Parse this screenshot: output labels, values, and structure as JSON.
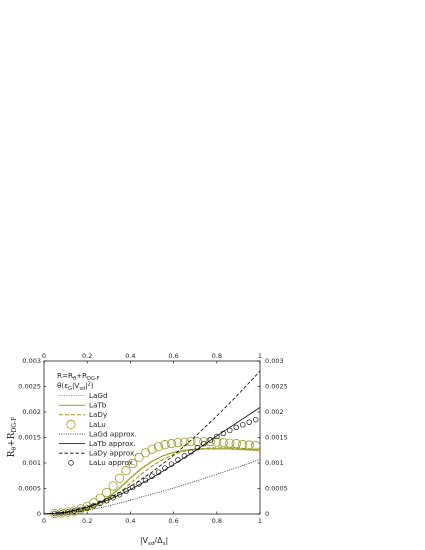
{
  "chart_data": {
    "type": "line",
    "xlabel": "|V",
    "xlabel_sub": "sd",
    "xlabel_mid": "/Δ",
    "xlabel_sub2": "s",
    "xlabel_end": "|",
    "ylabel": "R",
    "ylabel_sub": "θ",
    "ylabel_mid": "+R",
    "ylabel_sub2": "DG-F",
    "xlim": [
      0,
      1
    ],
    "ylim": [
      0,
      0.003
    ],
    "x_ticks": [
      "0",
      "0.2",
      "0.4",
      "0.6",
      "0.8",
      "1"
    ],
    "y_ticks_left": [
      "0",
      "0.0005",
      "0.001",
      "0.0015",
      "0.002",
      "0.0025",
      "0.003"
    ],
    "y_ticks_right": [
      "0",
      "0.0005",
      "0.001",
      "0.0015",
      "0.002",
      "0.0025",
      "0.003"
    ],
    "legend_header": {
      "line1_a": "R=R",
      "line1_sub": "θ",
      "line1_b": "+R",
      "line1_sub2": "DG-F",
      "line2_a": "θ(ε",
      "line2_sub": "G",
      "line2_b": "|V",
      "line2_sub2": "sd",
      "line2_c": "|",
      "line2_sup": "2",
      "line2_d": ")"
    },
    "legend_position": "top-left",
    "colors": {
      "lanthanide": "#9a9a1e",
      "approx": "#000000"
    },
    "series": [
      {
        "name": "LaGd",
        "style": "olive-dotted",
        "x": [
          0,
          0.05,
          0.1,
          0.15,
          0.2,
          0.25,
          0.3,
          0.35,
          0.4,
          0.45,
          0.5,
          0.55,
          0.6,
          0.65,
          0.7,
          0.75,
          0.8,
          0.85,
          0.9,
          0.95,
          1.0
        ],
        "y": [
          0,
          1e-05,
          3e-05,
          6e-05,
          0.00011,
          0.0002,
          0.00034,
          0.00052,
          0.00072,
          0.0009,
          0.00104,
          0.00114,
          0.0012,
          0.00124,
          0.00126,
          0.00127,
          0.00127,
          0.00127,
          0.00126,
          0.00125,
          0.00124
        ]
      },
      {
        "name": "LaTb",
        "style": "olive-solid",
        "x": [
          0,
          0.05,
          0.1,
          0.15,
          0.2,
          0.25,
          0.3,
          0.35,
          0.4,
          0.45,
          0.5,
          0.55,
          0.6,
          0.65,
          0.7,
          0.75,
          0.8,
          0.85,
          0.9,
          0.95,
          1.0
        ],
        "y": [
          0,
          1e-05,
          3e-05,
          6e-05,
          0.00011,
          0.0002,
          0.00033,
          0.0005,
          0.0007,
          0.00088,
          0.00103,
          0.00114,
          0.00121,
          0.00125,
          0.00127,
          0.00128,
          0.00128,
          0.00128,
          0.00127,
          0.00126,
          0.00125
        ]
      },
      {
        "name": "LaDy",
        "style": "olive-dashed",
        "x": [
          0,
          0.05,
          0.1,
          0.15,
          0.2,
          0.25,
          0.3,
          0.35,
          0.4,
          0.45,
          0.5,
          0.55,
          0.6,
          0.65,
          0.7,
          0.75,
          0.8,
          0.85,
          0.9,
          0.95,
          1.0
        ],
        "y": [
          0,
          1e-05,
          3e-05,
          5e-05,
          9e-05,
          0.00016,
          0.00027,
          0.00042,
          0.0006,
          0.00078,
          0.00094,
          0.00107,
          0.00117,
          0.00123,
          0.00127,
          0.00129,
          0.0013,
          0.0013,
          0.00129,
          0.00128,
          0.00127
        ]
      },
      {
        "name": "LaLu",
        "style": "olive-circles",
        "x": [
          0.05,
          0.08,
          0.11,
          0.14,
          0.17,
          0.2,
          0.23,
          0.26,
          0.29,
          0.32,
          0.35,
          0.38,
          0.41,
          0.44,
          0.47,
          0.5,
          0.53,
          0.56,
          0.59,
          0.62,
          0.65,
          0.68,
          0.71,
          0.74,
          0.77,
          0.8,
          0.83,
          0.86,
          0.89,
          0.92,
          0.95,
          0.98
        ],
        "y": [
          1e-05,
          2e-05,
          4e-05,
          6e-05,
          0.0001,
          0.00015,
          0.00022,
          0.00031,
          0.00042,
          0.00055,
          0.0007,
          0.00085,
          0.00099,
          0.00111,
          0.0012,
          0.00127,
          0.00132,
          0.00136,
          0.00138,
          0.0014,
          0.00141,
          0.00142,
          0.00142,
          0.00142,
          0.00142,
          0.00141,
          0.0014,
          0.00139,
          0.00138,
          0.00136,
          0.00135,
          0.00134
        ]
      },
      {
        "name": "LaGd approx.",
        "style": "black-dotted",
        "x": [
          0,
          0.1,
          0.2,
          0.3,
          0.4,
          0.5,
          0.6,
          0.7,
          0.8,
          0.9,
          1.0
        ],
        "y": [
          0,
          2e-05,
          7e-05,
          0.00016,
          0.00027,
          0.00039,
          0.00051,
          0.00064,
          0.00078,
          0.00092,
          0.00107
        ]
      },
      {
        "name": "LaTb approx.",
        "style": "black-solid",
        "x": [
          0,
          0.1,
          0.2,
          0.3,
          0.4,
          0.5,
          0.6,
          0.7,
          0.8,
          0.9,
          1.0
        ],
        "y": [
          0,
          3e-05,
          0.00013,
          0.00028,
          0.00048,
          0.00071,
          0.00097,
          0.00124,
          0.00153,
          0.00181,
          0.00209
        ]
      },
      {
        "name": "LaDy approx.",
        "style": "black-dashed",
        "x": [
          0,
          0.1,
          0.2,
          0.3,
          0.4,
          0.5,
          0.6,
          0.7,
          0.8,
          0.9,
          1.0
        ],
        "y": [
          0,
          4e-05,
          0.00014,
          0.00031,
          0.00054,
          0.00082,
          0.00115,
          0.00152,
          0.00192,
          0.00235,
          0.0028
        ]
      },
      {
        "name": "LaLu approx.",
        "style": "black-circles",
        "x": [
          0.05,
          0.08,
          0.11,
          0.14,
          0.17,
          0.2,
          0.23,
          0.26,
          0.29,
          0.32,
          0.35,
          0.38,
          0.41,
          0.44,
          0.47,
          0.5,
          0.53,
          0.56,
          0.59,
          0.62,
          0.65,
          0.68,
          0.71,
          0.74,
          0.77,
          0.8,
          0.83,
          0.86,
          0.89,
          0.92,
          0.95,
          0.98
        ],
        "y": [
          1e-05,
          2e-05,
          4e-05,
          6e-05,
          9e-05,
          0.00012,
          0.00016,
          0.00021,
          0.00026,
          0.00032,
          0.00038,
          0.00045,
          0.00052,
          0.00059,
          0.00066,
          0.00074,
          0.00082,
          0.0009,
          0.00098,
          0.00106,
          0.00114,
          0.00122,
          0.0013,
          0.00138,
          0.00145,
          0.00152,
          0.00158,
          0.00164,
          0.0017,
          0.00175,
          0.0018,
          0.00185
        ]
      }
    ]
  }
}
